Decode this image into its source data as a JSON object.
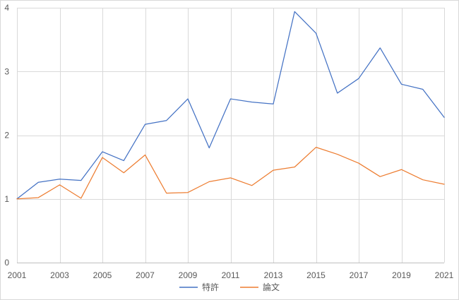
{
  "chart_data": {
    "type": "line",
    "title": "",
    "xlabel": "",
    "ylabel": "",
    "x": [
      2001,
      2002,
      2003,
      2004,
      2005,
      2006,
      2007,
      2008,
      2009,
      2010,
      2011,
      2012,
      2013,
      2014,
      2015,
      2016,
      2017,
      2018,
      2019,
      2020,
      2021
    ],
    "x_tick_labels": [
      "2001",
      "2003",
      "2005",
      "2007",
      "2009",
      "2011",
      "2013",
      "2015",
      "2017",
      "2019",
      "2021"
    ],
    "y_tick_labels": [
      "0",
      "1",
      "2",
      "3",
      "4"
    ],
    "xlim": [
      2001,
      2021
    ],
    "ylim": [
      0,
      4
    ],
    "grid": true,
    "legend_position": "bottom",
    "series": [
      {
        "name": "特許",
        "color": "#4472C4",
        "values": [
          1.0,
          1.26,
          1.31,
          1.29,
          1.74,
          1.6,
          2.17,
          2.23,
          2.57,
          1.8,
          2.57,
          2.52,
          2.49,
          3.94,
          3.6,
          2.66,
          2.89,
          3.37,
          2.8,
          2.72,
          2.28
        ]
      },
      {
        "name": "論文",
        "color": "#ED7D31",
        "values": [
          1.0,
          1.02,
          1.22,
          1.01,
          1.65,
          1.41,
          1.69,
          1.09,
          1.1,
          1.27,
          1.33,
          1.21,
          1.45,
          1.5,
          1.81,
          1.7,
          1.56,
          1.35,
          1.46,
          1.3,
          1.23
        ]
      }
    ]
  }
}
